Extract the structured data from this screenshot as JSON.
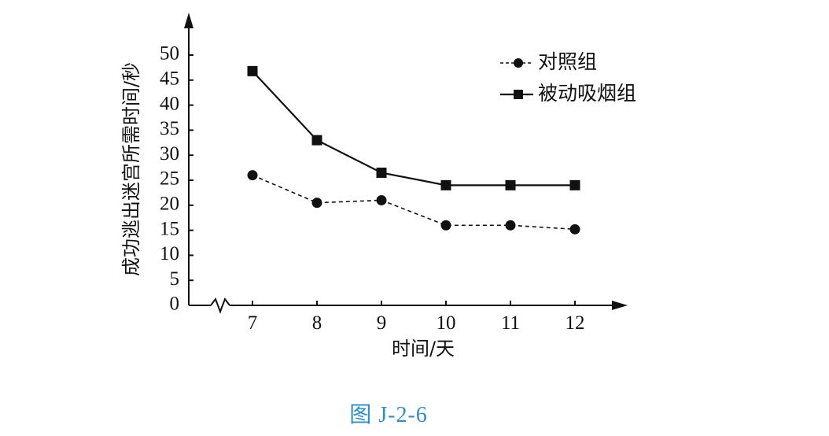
{
  "chart_data": {
    "type": "line",
    "x": [
      7,
      8,
      9,
      10,
      11,
      12
    ],
    "series": [
      {
        "name": "对照组",
        "values": [
          26,
          20.5,
          21,
          16,
          16,
          15.2
        ],
        "line_style": "dashed",
        "marker": "circle",
        "color": "#111111"
      },
      {
        "name": "被动吸烟组",
        "values": [
          46.8,
          33,
          26.5,
          24,
          24,
          24
        ],
        "line_style": "solid",
        "marker": "square",
        "color": "#111111"
      }
    ],
    "xlabel": "时间/天",
    "ylabel": "成功逃出迷宫所需时间/秒",
    "ylim": [
      0,
      50
    ],
    "yticks": [
      0,
      5,
      10,
      15,
      20,
      25,
      30,
      35,
      40,
      45,
      50
    ],
    "xticks": [
      "7",
      "8",
      "9",
      "10",
      "11",
      "12"
    ],
    "axis_break": true,
    "grid": false,
    "legend_position": "top-right"
  },
  "caption": "图 J-2-6",
  "caption_color": "#2a8fd0"
}
